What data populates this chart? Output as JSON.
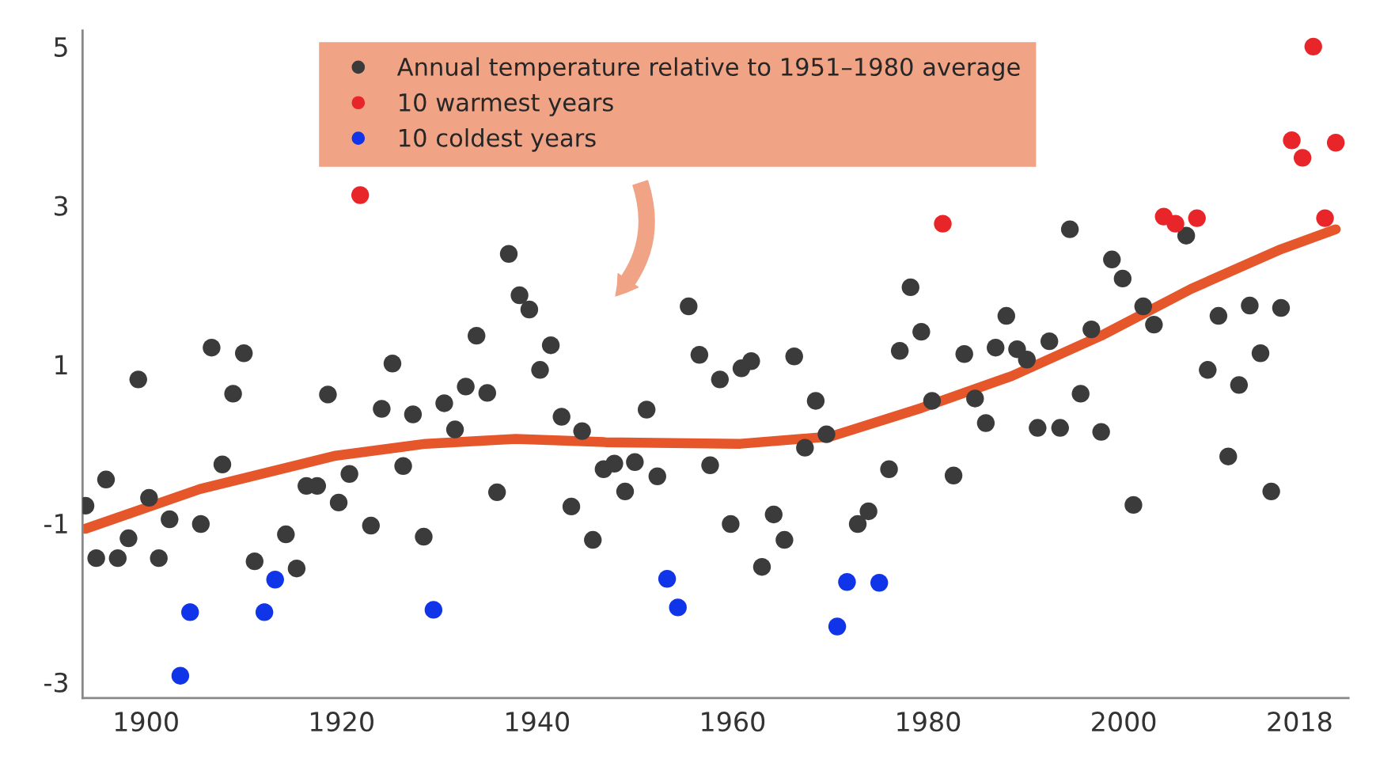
{
  "chart_data": {
    "type": "scatter",
    "xlim": [
      1893.5,
      2023
    ],
    "ylim": [
      -3.2,
      5.2
    ],
    "xticks": [
      1900,
      1920,
      1940,
      1960,
      1980,
      2000,
      2018
    ],
    "yticks": [
      -3,
      -1,
      1,
      3,
      5
    ],
    "marker": "circle",
    "legend": "top",
    "series": [
      {
        "name": "Annual temperature relative to 1951–1980 average",
        "color": "#3b3b3b",
        "x": [
          1893.8,
          1894.9,
          1895.9,
          1897.1,
          1898.2,
          1899.2,
          1900.3,
          1901.3,
          1902.4,
          1905.6,
          1906.7,
          1907.8,
          1908.9,
          1910.0,
          1911.1,
          1914.3,
          1915.4,
          1916.4,
          1917.5,
          1918.6,
          1919.7,
          1920.8,
          1923.0,
          1924.1,
          1925.2,
          1926.3,
          1927.3,
          1928.4,
          1930.5,
          1931.6,
          1932.7,
          1933.8,
          1934.9,
          1935.9,
          1937.1,
          1938.2,
          1939.2,
          1940.3,
          1941.4,
          1942.5,
          1943.5,
          1944.6,
          1945.7,
          1946.8,
          1947.9,
          1949.0,
          1950.0,
          1951.2,
          1952.3,
          1955.5,
          1956.6,
          1957.7,
          1958.7,
          1959.8,
          1960.9,
          1961.9,
          1963.0,
          1964.2,
          1965.3,
          1966.3,
          1967.4,
          1968.5,
          1969.6,
          1972.8,
          1973.9,
          1976.0,
          1977.1,
          1978.2,
          1979.3,
          1980.4,
          1982.6,
          1983.7,
          1984.8,
          1985.9,
          1986.9,
          1988.0,
          1989.1,
          1990.1,
          1991.2,
          1992.4,
          1993.5,
          1994.5,
          1995.6,
          1996.7,
          1997.7,
          1998.8,
          1999.9,
          2001.0,
          2002.0,
          2003.1,
          2006.4,
          2008.6,
          2009.7,
          2010.7,
          2011.8,
          2012.9,
          2014.0,
          2015.1,
          2016.1
        ],
        "values": [
          -0.78,
          -1.44,
          -0.45,
          -1.44,
          -1.19,
          0.81,
          -0.68,
          -1.44,
          -0.95,
          -1.01,
          1.21,
          -0.26,
          0.63,
          1.14,
          -1.48,
          -1.14,
          -1.57,
          -0.53,
          -0.53,
          0.62,
          -0.74,
          -0.38,
          -1.03,
          0.44,
          1.01,
          -0.28,
          0.37,
          -1.17,
          0.51,
          0.18,
          0.72,
          1.36,
          0.64,
          -0.61,
          2.39,
          1.87,
          1.69,
          0.93,
          1.24,
          0.34,
          -0.79,
          0.16,
          -1.21,
          -0.32,
          -0.25,
          -0.6,
          -0.23,
          0.43,
          -0.41,
          1.73,
          1.12,
          -0.27,
          0.81,
          -1.01,
          0.95,
          1.04,
          -1.55,
          -0.89,
          -1.21,
          1.1,
          -0.05,
          0.54,
          0.12,
          -1.01,
          -0.85,
          -0.32,
          1.17,
          1.97,
          1.41,
          0.54,
          -0.4,
          1.13,
          0.57,
          0.26,
          1.21,
          1.61,
          1.19,
          1.06,
          0.2,
          1.29,
          0.2,
          2.7,
          0.63,
          1.44,
          0.15,
          2.32,
          2.08,
          -0.77,
          1.73,
          1.5,
          2.62,
          0.93,
          1.61,
          -0.16,
          0.74,
          1.74,
          1.14,
          -0.6,
          1.71
        ]
      },
      {
        "name": "10 warmest years",
        "color": "#e8262a",
        "x": [
          1921.9,
          1981.5,
          2004.1,
          2005.3,
          2007.5,
          2017.2,
          2018.3,
          2019.4,
          2020.6,
          2021.7
        ],
        "values": [
          3.13,
          2.77,
          2.86,
          2.77,
          2.84,
          3.82,
          3.6,
          5.0,
          2.84,
          3.79
        ]
      },
      {
        "name": "10 coldest years",
        "color": "#1034e8",
        "x": [
          1903.5,
          1904.5,
          1912.1,
          1913.2,
          1929.4,
          1953.3,
          1954.4,
          1970.7,
          1971.7,
          1975.0
        ],
        "values": [
          -2.92,
          -2.12,
          -2.12,
          -1.71,
          -2.09,
          -1.7,
          -2.06,
          -2.3,
          -1.74,
          -1.75
        ]
      },
      {
        "color": "#e5562b",
        "type": "line",
        "marker": "none",
        "x": [
          1893.8,
          1905.5,
          1919.4,
          1928.6,
          1937.8,
          1947.0,
          1960.8,
          1970.0,
          1979.3,
          1988.5,
          1997.7,
          2006.9,
          2016.1,
          2021.7
        ],
        "values": [
          -1.07,
          -0.57,
          -0.15,
          0.0,
          0.06,
          0.02,
          0.0,
          0.09,
          0.45,
          0.85,
          1.36,
          1.95,
          2.45,
          2.7
        ]
      }
    ]
  }
}
